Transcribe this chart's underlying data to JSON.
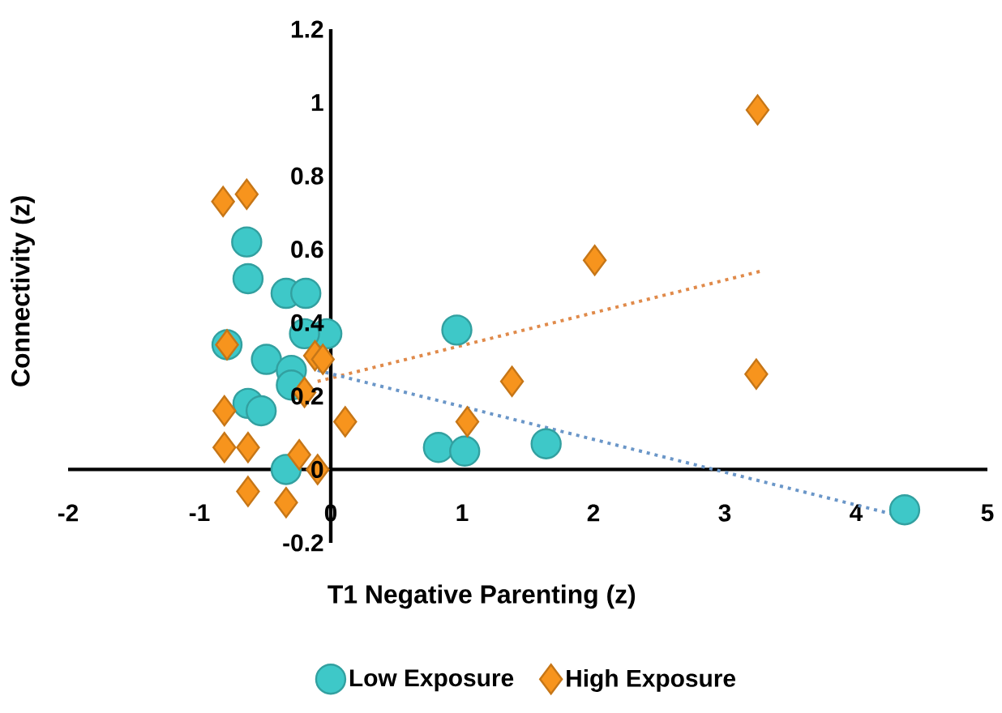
{
  "chart_data": {
    "type": "scatter",
    "xlabel": "T1 Negative Parenting (z)",
    "ylabel": "Connectivity (z)",
    "xlim": [
      -2,
      5
    ],
    "ylim": [
      -0.2,
      1.2
    ],
    "xticks": [
      -2,
      -1,
      0,
      1,
      2,
      3,
      4,
      5
    ],
    "yticks": [
      -0.2,
      0,
      0.2,
      0.4,
      0.6,
      0.8,
      1,
      1.2
    ],
    "grid": false,
    "legend": "bottom",
    "series": [
      {
        "name": "Low Exposure",
        "color": "#3ec8c8",
        "marker": "circle",
        "x": [
          0.96,
          0.82,
          1.02,
          1.64,
          4.37,
          -0.64,
          -0.63,
          -0.34,
          -0.19,
          -0.03,
          -0.2,
          -0.79,
          -0.49,
          -0.3,
          -0.63,
          -0.53,
          -0.3,
          -0.34
        ],
        "values": [
          0.38,
          0.06,
          0.05,
          0.07,
          -0.11,
          0.62,
          0.52,
          0.48,
          0.48,
          0.37,
          0.37,
          0.34,
          0.3,
          0.27,
          0.18,
          0.16,
          0.23,
          0.0
        ]
      },
      {
        "name": "High Exposure",
        "color": "#f7941d",
        "marker": "diamond",
        "x": [
          3.25,
          2.01,
          1.38,
          1.04,
          3.24,
          -0.82,
          -0.64,
          -0.79,
          -0.12,
          -0.06,
          -0.2,
          -0.81,
          0.11,
          -0.81,
          -0.63,
          -0.24,
          -0.1,
          -0.63,
          -0.34
        ],
        "values": [
          0.98,
          0.57,
          0.24,
          0.13,
          0.26,
          0.73,
          0.75,
          0.34,
          0.31,
          0.3,
          0.21,
          0.16,
          0.13,
          0.06,
          0.06,
          0.04,
          0.0,
          -0.06,
          -0.09
        ]
      },
      {
        "type": "line",
        "color": "#e08a4a",
        "line_style": "dotted",
        "marker": "none",
        "x": [
          -0.1,
          3.27
        ],
        "values": [
          0.24,
          0.54
        ]
      },
      {
        "type": "line",
        "color": "#6a96c8",
        "line_style": "dotted",
        "marker": "none",
        "x": [
          -0.1,
          4.37
        ],
        "values": [
          0.27,
          -0.13
        ]
      }
    ]
  }
}
